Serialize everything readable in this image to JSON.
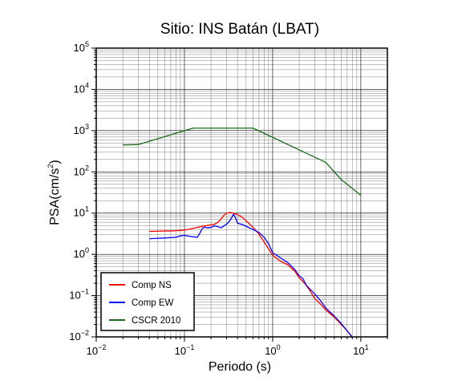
{
  "chart_data": {
    "type": "line",
    "title": "Sitio: INS Batán (LBAT)",
    "xlabel": "Periodo (s)",
    "ylabel_main": "PSA(cm/s",
    "ylabel_sup": "2",
    "ylabel_close": ")",
    "x_scale": "log",
    "y_scale": "log",
    "xlim": [
      0.01,
      20
    ],
    "ylim": [
      0.01,
      100000
    ],
    "grid": true,
    "legend_position": "bottom-left",
    "x_ticks": [
      {
        "base": "10",
        "exp": "−2",
        "value": 0.01
      },
      {
        "base": "10",
        "exp": "−1",
        "value": 0.1
      },
      {
        "base": "10",
        "exp": "0",
        "value": 1
      },
      {
        "base": "10",
        "exp": "1",
        "value": 10
      }
    ],
    "y_ticks": [
      {
        "base": "10",
        "exp": "−2",
        "value": 0.01
      },
      {
        "base": "10",
        "exp": "−1",
        "value": 0.1
      },
      {
        "base": "10",
        "exp": "0",
        "value": 1
      },
      {
        "base": "10",
        "exp": "1",
        "value": 10
      },
      {
        "base": "10",
        "exp": "2",
        "value": 100
      },
      {
        "base": "10",
        "exp": "3",
        "value": 1000
      },
      {
        "base": "10",
        "exp": "4",
        "value": 10000
      },
      {
        "base": "10",
        "exp": "5",
        "value": 100000
      }
    ],
    "series": [
      {
        "name": "Comp NS",
        "color": "#ff0000",
        "x": [
          0.04,
          0.05,
          0.06,
          0.07,
          0.08,
          0.09,
          0.1,
          0.12,
          0.14,
          0.16,
          0.18,
          0.2,
          0.22,
          0.24,
          0.26,
          0.28,
          0.3,
          0.33,
          0.36,
          0.4,
          0.45,
          0.5,
          0.6,
          0.7,
          0.8,
          1.0,
          1.2,
          1.5,
          1.8,
          2.0,
          2.3,
          2.6,
          3.0,
          3.5,
          4.0,
          5.0,
          6.0,
          7.0,
          8.0
        ],
        "y": [
          3.6,
          3.65,
          3.7,
          3.7,
          3.75,
          3.8,
          3.9,
          4.2,
          4.5,
          4.8,
          5.0,
          5.2,
          5.4,
          6.0,
          7.2,
          8.8,
          10.0,
          10.4,
          10.0,
          9.2,
          8.0,
          6.5,
          4.5,
          3.1,
          2.0,
          0.95,
          0.7,
          0.55,
          0.38,
          0.27,
          0.2,
          0.14,
          0.085,
          0.062,
          0.045,
          0.03,
          0.02,
          0.014,
          0.01
        ]
      },
      {
        "name": "Comp EW",
        "color": "#0000ff",
        "x": [
          0.04,
          0.05,
          0.06,
          0.07,
          0.08,
          0.09,
          0.1,
          0.12,
          0.14,
          0.15,
          0.16,
          0.17,
          0.18,
          0.2,
          0.22,
          0.24,
          0.26,
          0.28,
          0.3,
          0.32,
          0.34,
          0.36,
          0.38,
          0.4,
          0.45,
          0.5,
          0.6,
          0.7,
          0.8,
          0.9,
          1.0,
          1.2,
          1.5,
          1.8,
          2.0,
          2.2,
          2.4,
          2.6,
          3.0,
          3.5,
          4.0,
          5.0,
          6.0,
          7.0,
          8.0
        ],
        "y": [
          2.4,
          2.45,
          2.5,
          2.55,
          2.6,
          2.8,
          2.9,
          2.7,
          2.6,
          3.3,
          4.3,
          4.6,
          4.4,
          4.5,
          4.9,
          4.7,
          4.4,
          4.9,
          5.4,
          6.2,
          7.5,
          9.4,
          7.6,
          5.7,
          5.3,
          4.8,
          4.0,
          3.4,
          2.6,
          1.8,
          1.1,
          0.85,
          0.62,
          0.42,
          0.3,
          0.26,
          0.18,
          0.15,
          0.11,
          0.075,
          0.05,
          0.032,
          0.021,
          0.014,
          0.0098
        ]
      },
      {
        "name": "CSCR 2010",
        "color": "#1a6b1a",
        "x": [
          0.02,
          0.03,
          0.125,
          0.6,
          4.0,
          6.0,
          10.0
        ],
        "y": [
          450,
          460,
          1150,
          1150,
          170,
          65,
          27
        ]
      }
    ]
  }
}
